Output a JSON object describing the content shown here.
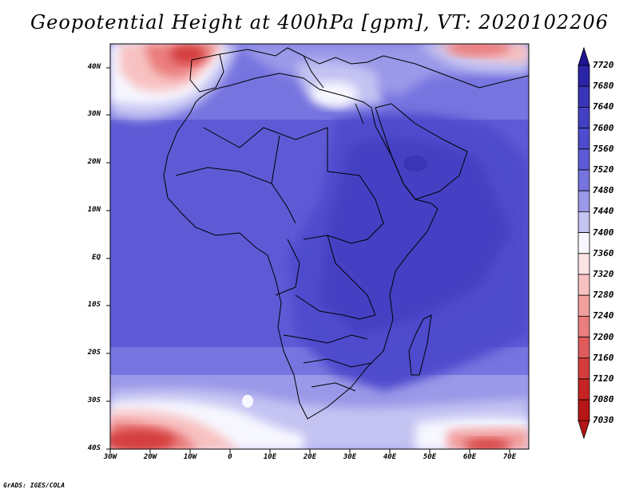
{
  "title": "Geopotential Height at 400hPa [gpm], VT: 2020102206",
  "credit": "GrADS: IGES/COLA",
  "lat_labels": [
    "40N",
    "30N",
    "20N",
    "10N",
    "EQ",
    "10S",
    "20S",
    "30S",
    "40S"
  ],
  "lon_labels": [
    "30W",
    "20W",
    "10W",
    "0",
    "10E",
    "20E",
    "30E",
    "40E",
    "50E",
    "60E",
    "70E"
  ],
  "colorbar": {
    "labels": [
      "7720",
      "7680",
      "7640",
      "7600",
      "7560",
      "7520",
      "7480",
      "7440",
      "7400",
      "7360",
      "7320",
      "7280",
      "7240",
      "7200",
      "7160",
      "7120",
      "7080",
      "7030"
    ],
    "colors": [
      "#1d1494",
      "#2a24a6",
      "#3a34b6",
      "#4440c3",
      "#4f4bcd",
      "#5e5ad6",
      "#7674df",
      "#9a98e8",
      "#c4c3f2",
      "#f7f7ff",
      "#fde3e3",
      "#f8c1c1",
      "#f29f9f",
      "#ea7d7d",
      "#e05c5c",
      "#d43c3c",
      "#c62323",
      "#b51616"
    ]
  }
}
